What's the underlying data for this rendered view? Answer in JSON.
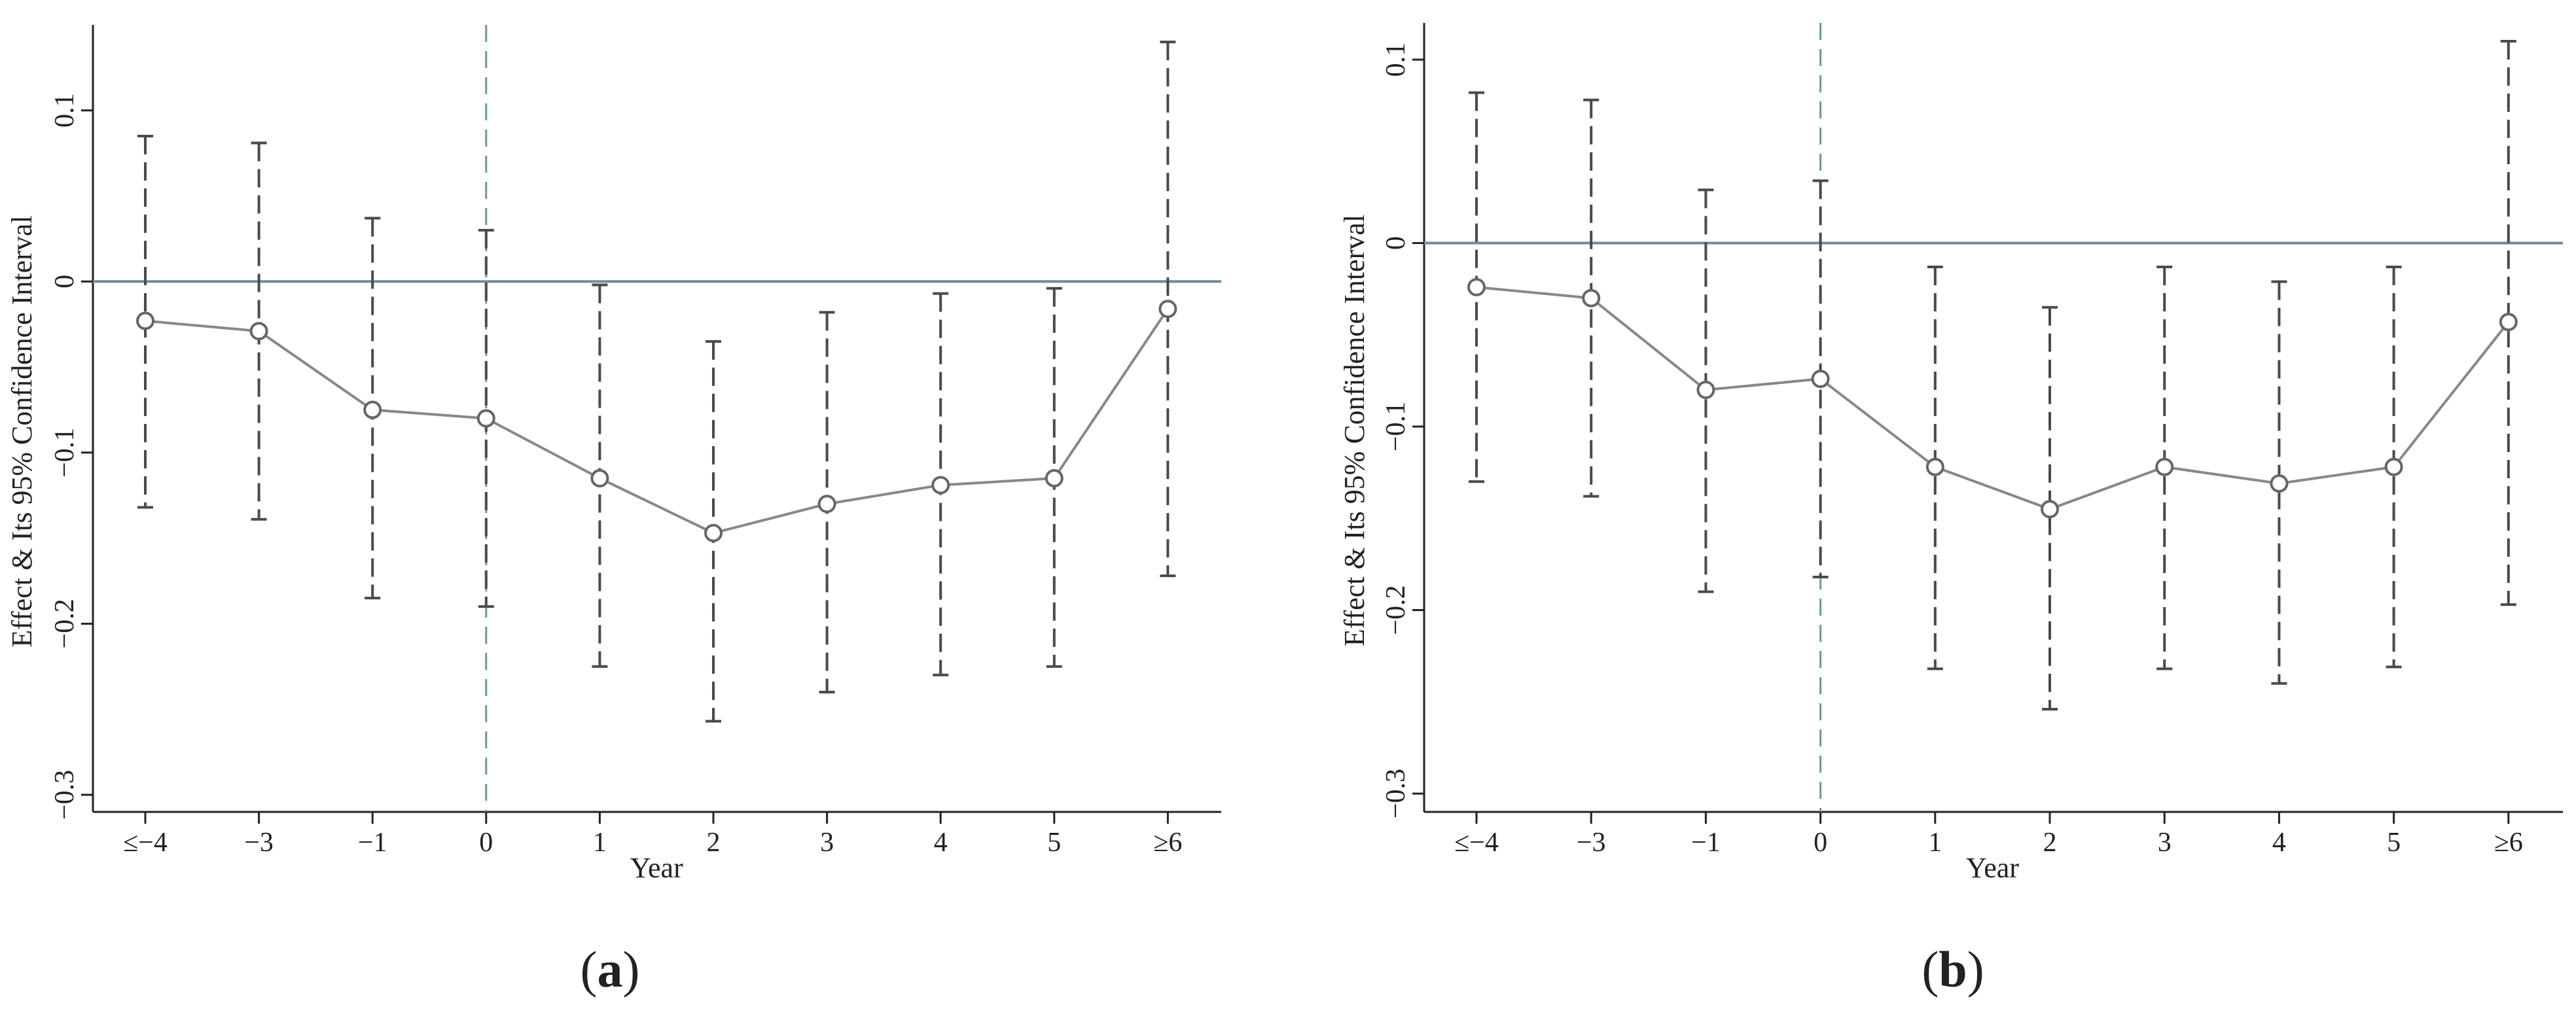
{
  "colors": {
    "zero_line": "#6f8a9e",
    "event_line": "#6e9a8c",
    "point_line": "#888888",
    "ci": "#4a4a4a",
    "axis": "#222222"
  },
  "chart_data": [
    {
      "type": "line",
      "panel_label": "a",
      "xlabel": "Year",
      "ylabel": "Effect & Its 95% Confidence Interval",
      "categories": [
        "≤−4",
        "−3",
        "−1",
        "0",
        "1",
        "2",
        "3",
        "4",
        "5",
        "≥6"
      ],
      "y_ticks": [
        -0.3,
        -0.2,
        -0.1,
        0,
        0.1
      ],
      "y_tick_labels": [
        "−0.3",
        "−0.2",
        "−0.1",
        "0",
        "0.1"
      ],
      "ylim": [
        -0.31,
        0.15
      ],
      "event_category": "0",
      "reference_y": 0,
      "grid": false,
      "series": [
        {
          "values": [
            -0.023,
            -0.029,
            -0.075,
            -0.08,
            -0.115,
            -0.147,
            -0.13,
            -0.119,
            -0.115,
            -0.016
          ],
          "ci_lower": [
            -0.132,
            -0.139,
            -0.185,
            -0.19,
            -0.225,
            -0.257,
            -0.24,
            -0.23,
            -0.225,
            -0.172
          ],
          "ci_upper": [
            0.085,
            0.081,
            0.037,
            0.03,
            -0.002,
            -0.035,
            -0.018,
            -0.007,
            -0.004,
            0.14
          ]
        }
      ]
    },
    {
      "type": "line",
      "panel_label": "b",
      "xlabel": "Year",
      "ylabel": "Effect & Its 95% Confidence Interval",
      "categories": [
        "≤−4",
        "−3",
        "−1",
        "0",
        "1",
        "2",
        "3",
        "4",
        "5",
        "≥6"
      ],
      "y_ticks": [
        -0.3,
        -0.2,
        -0.1,
        0,
        0.1
      ],
      "y_tick_labels": [
        "−0.3",
        "−0.2",
        "−0.1",
        "0",
        "0.1"
      ],
      "ylim": [
        -0.31,
        0.12
      ],
      "event_category": "0",
      "reference_y": 0,
      "grid": false,
      "series": [
        {
          "values": [
            -0.024,
            -0.03,
            -0.08,
            -0.074,
            -0.122,
            -0.145,
            -0.122,
            -0.131,
            -0.122,
            -0.043
          ],
          "ci_lower": [
            -0.13,
            -0.138,
            -0.19,
            -0.182,
            -0.232,
            -0.254,
            -0.232,
            -0.24,
            -0.231,
            -0.197
          ],
          "ci_upper": [
            0.082,
            0.078,
            0.029,
            0.034,
            -0.013,
            -0.035,
            -0.013,
            -0.021,
            -0.013,
            0.11
          ]
        }
      ]
    }
  ]
}
